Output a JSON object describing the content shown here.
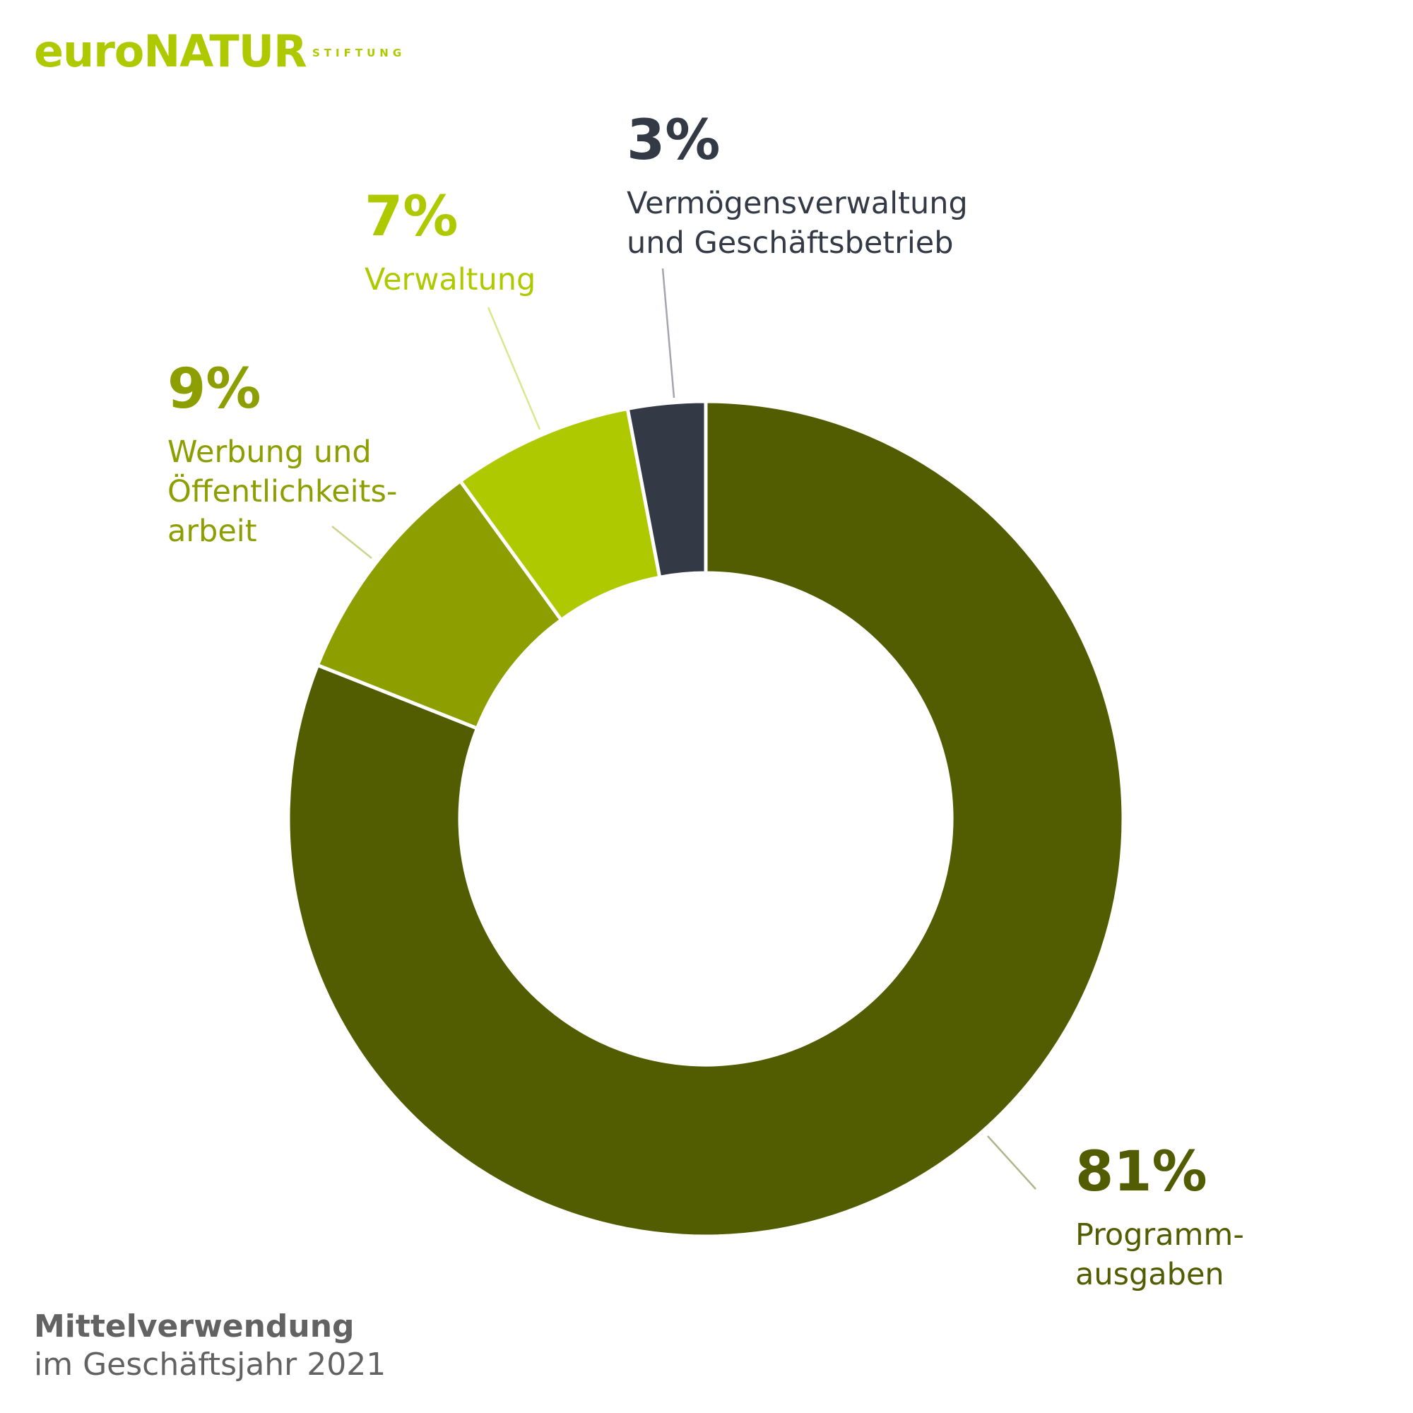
{
  "brand": "euroNATUR",
  "brand_sub": "STIFTUNG",
  "chart_data": {
    "type": "donut",
    "title": "Mittelverwendung",
    "subtitle": "im Geschäftsjahr 2021",
    "categories": [
      "Programm-\nausgaben",
      "Werbung und\nÖffentlichkeits-\narbeit",
      "Verwaltung",
      "Vermögensverwaltung\nund Geschäftsbetrieb"
    ],
    "values": [
      81,
      9,
      7,
      3
    ],
    "value_labels": [
      "81%",
      "9%",
      "7%",
      "3%"
    ],
    "colors": [
      "#525c00",
      "#8d9e00",
      "#afc900",
      "#333a46"
    ]
  }
}
